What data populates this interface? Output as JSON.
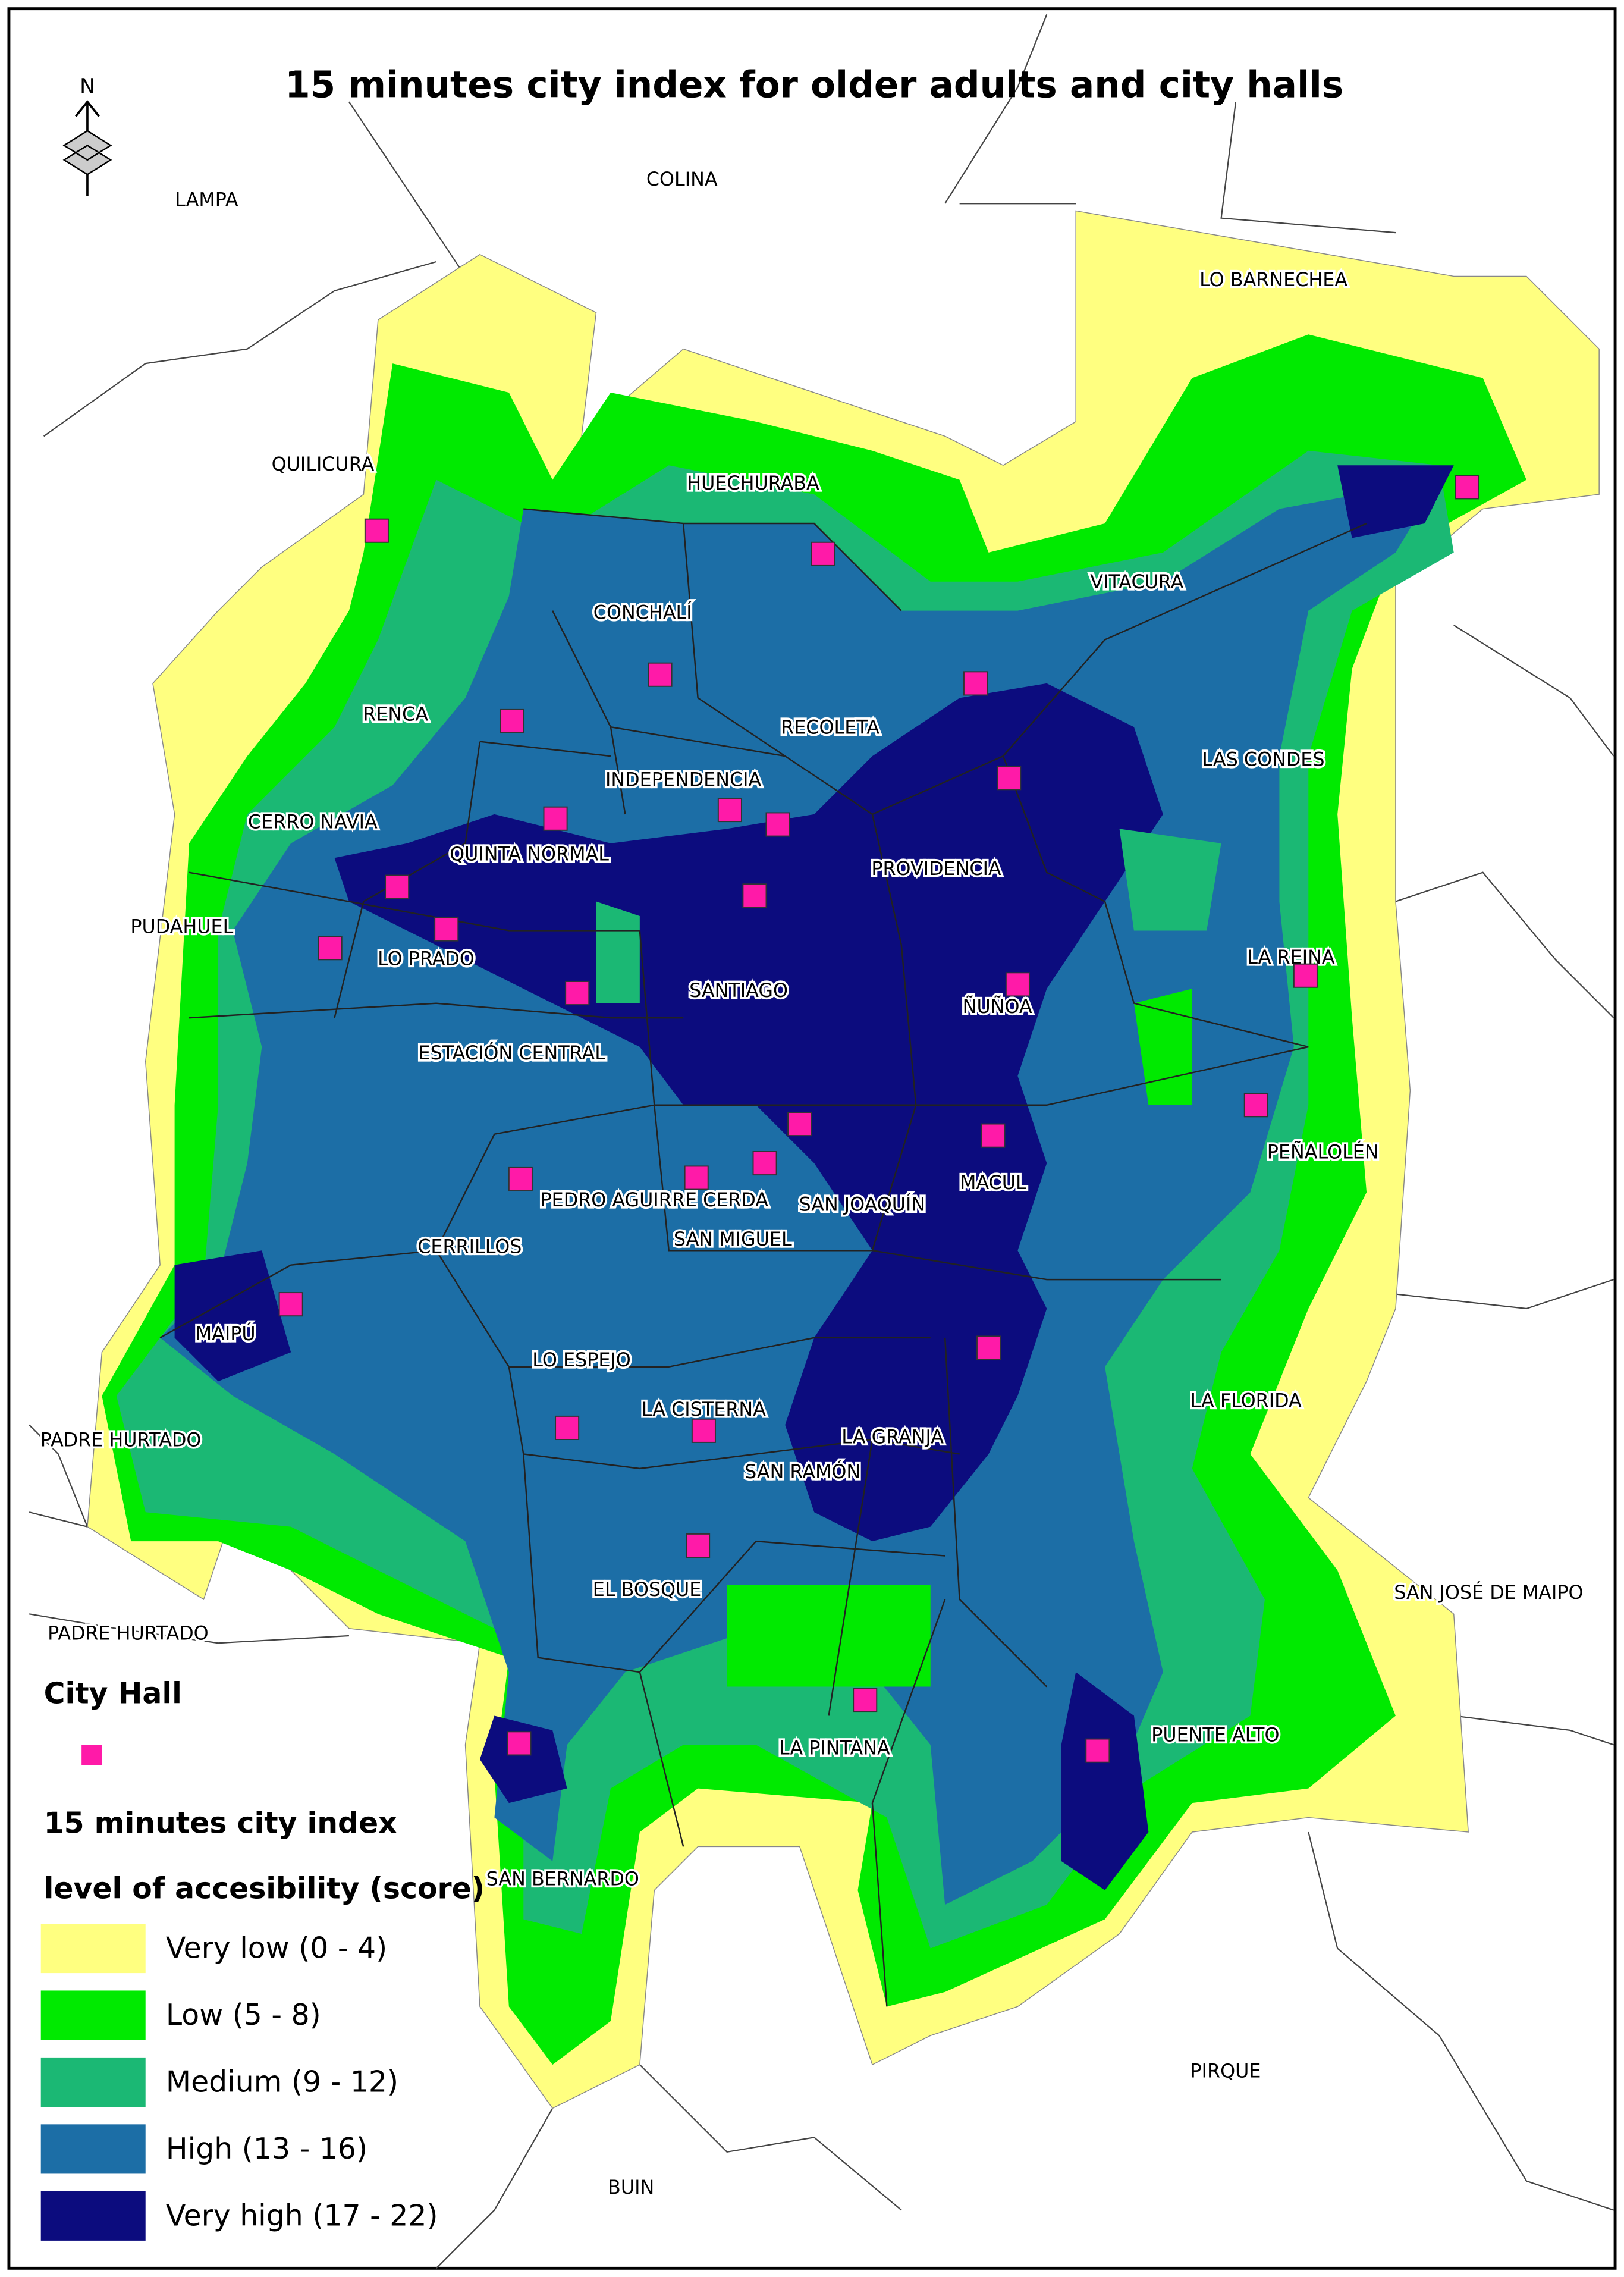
{
  "title": "15 minutes city index for older adults and city halls",
  "compass": "N",
  "labels": [
    "LAMPA",
    "COLINA",
    "LO BARNECHEA",
    "QUILICURA",
    "HUECHURABA",
    "VITACURA",
    "CONCHALÍ",
    "RENCA",
    "RECOLETA",
    "LAS CONDES",
    "INDEPENDENCIA",
    "CERRO NAVIA",
    "QUINTA NORMAL",
    "PROVIDENCIA",
    "PUDAHUEL",
    "LO PRADO",
    "LA REINA",
    "SANTIAGO",
    "ÑUÑOA",
    "ESTACIÓN CENTRAL",
    "PEÑALOLÉN",
    "MACUL",
    "PEDRO AGUIRRE CERDA",
    "SAN JOAQUÍN",
    "SAN MIGUEL",
    "CERRILLOS",
    "MAIPÚ",
    "LO ESPEJO",
    "LA FLORIDA",
    "LA CISTERNA",
    "LA GRANJA",
    "PADRE HURTADO",
    "SAN RAMÓN",
    "EL BOSQUE",
    "SAN JOSÉ DE MAIPO",
    "PADRE HURTADO",
    "LA PINTANA",
    "PUENTE ALTO",
    "SAN BERNARDO",
    "PIRQUE",
    "BUIN"
  ],
  "legend": {
    "city_hall": "City Hall",
    "city_hall_color": "#ff1aa8",
    "index_title": "15 minutes city index",
    "index_subtitle": "level of accesibility (score)",
    "items": [
      {
        "label": "Very low (0 - 4)",
        "color": "#ffff80"
      },
      {
        "label": "Low (5 - 8)",
        "color": "#00ea00"
      },
      {
        "label": "Medium (9 - 12)",
        "color": "#1bb874"
      },
      {
        "label": "High (13 - 16)",
        "color": "#1c6ea6"
      },
      {
        "label": "Very high (17 - 22)",
        "color": "#0c0c7e"
      }
    ]
  }
}
